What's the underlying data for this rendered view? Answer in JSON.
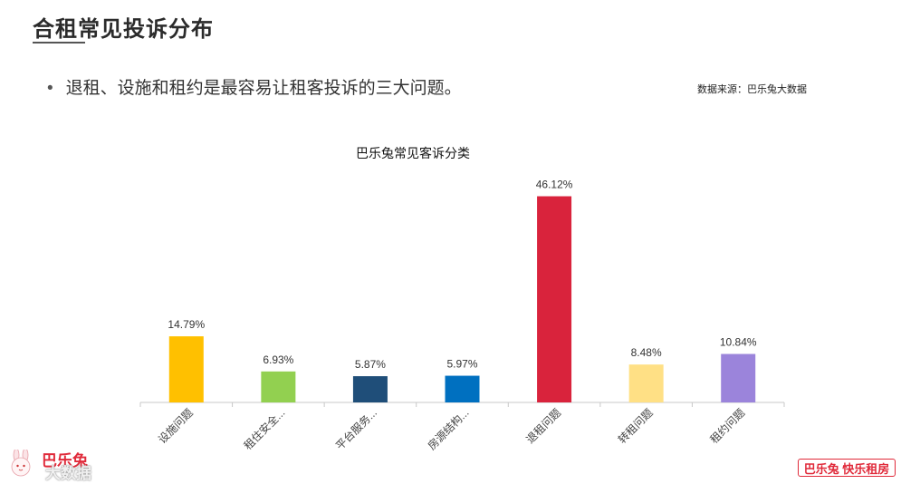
{
  "page": {
    "title": "合租常见投诉分布",
    "bullet": "退租、设施和租约是最容易让租客投诉的三大问题。",
    "source": "数据来源：巴乐兔大数据"
  },
  "logos": {
    "left_line1": "巴乐兔",
    "left_line2": "大数据",
    "right": "巴乐兔 快乐租房"
  },
  "chart_data": {
    "type": "bar",
    "title": "巴乐兔常见客诉分类",
    "categories": [
      "设施问题",
      "租住安全...",
      "平台服务...",
      "房源结构...",
      "退租问题",
      "转租问题",
      "租约问题"
    ],
    "values": [
      14.79,
      6.93,
      5.87,
      5.97,
      46.12,
      8.48,
      10.84
    ],
    "data_labels": [
      "14.79%",
      "6.93%",
      "5.87%",
      "5.97%",
      "46.12%",
      "8.48%",
      "10.84%"
    ],
    "colors": [
      "#FFC000",
      "#92D050",
      "#1F4E79",
      "#0070C0",
      "#D9233C",
      "#FFE085",
      "#9B84DB"
    ],
    "ylim": [
      0,
      50
    ],
    "xlabel": "",
    "ylabel": "",
    "grid": false,
    "legend": "none"
  }
}
